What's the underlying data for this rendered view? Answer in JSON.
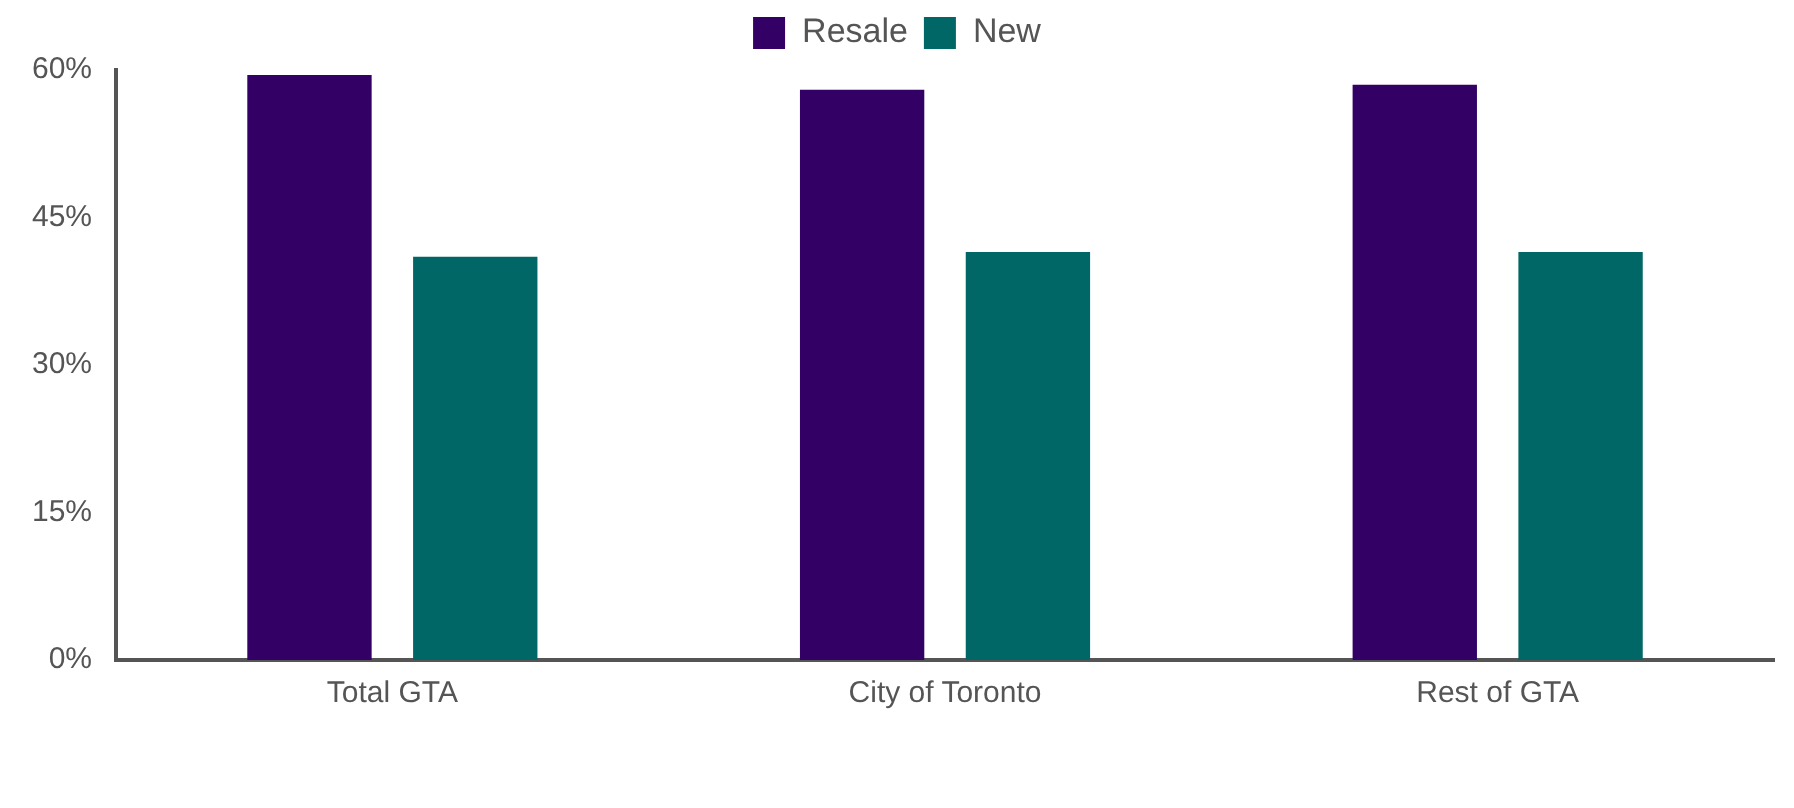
{
  "chart_data": {
    "type": "bar",
    "categories": [
      "Total GTA",
      "City of Toronto",
      "Rest of GTA"
    ],
    "series": [
      {
        "name": "Resale",
        "color": "#330066",
        "values": [
          59.5,
          58,
          58.5
        ]
      },
      {
        "name": "New",
        "color": "#006666",
        "values": [
          41,
          41.5,
          41.5
        ]
      }
    ],
    "ylim": [
      0,
      60
    ],
    "yticks": [
      {
        "value": 0,
        "label": "0%"
      },
      {
        "value": 15,
        "label": "15%"
      },
      {
        "value": 30,
        "label": "30%"
      },
      {
        "value": 45,
        "label": "45%"
      },
      {
        "value": 60,
        "label": "60%"
      }
    ],
    "grid": false,
    "legend": "top"
  }
}
